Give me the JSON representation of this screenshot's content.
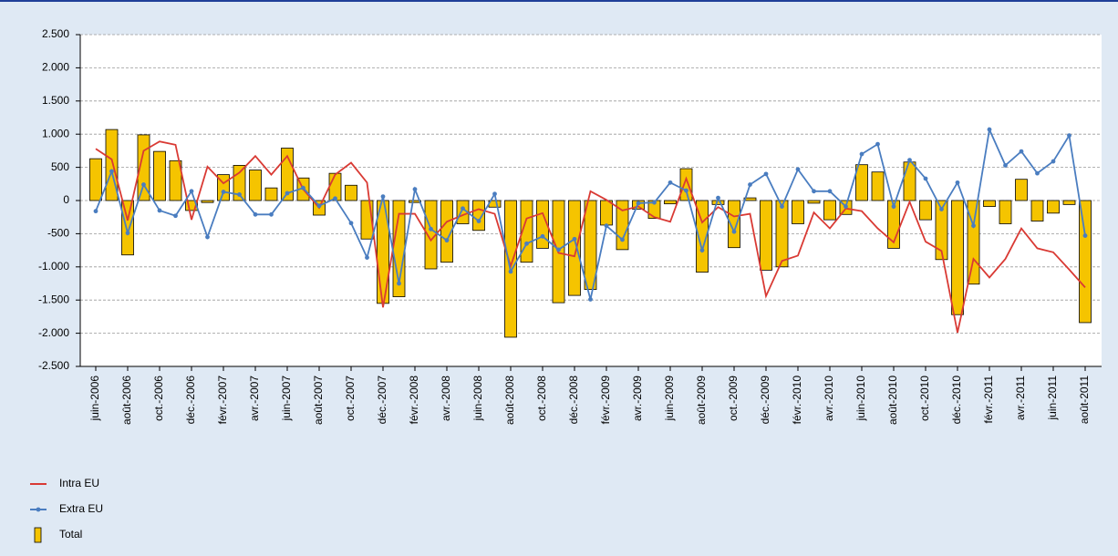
{
  "chart_data": {
    "type": "bar",
    "categories": [
      "juin-2006",
      null,
      "août-2006",
      null,
      "oct.-2006",
      null,
      "déc.-2006",
      null,
      "févr.-2007",
      null,
      "avr.-2007",
      null,
      "juin-2007",
      null,
      "août-2007",
      null,
      "oct.-2007",
      null,
      "déc.-2007",
      null,
      "févr.-2008",
      null,
      "avr.-2008",
      null,
      "juin-2008",
      null,
      "août-2008",
      null,
      "oct.-2008",
      null,
      "déc.-2008",
      null,
      "févr.-2009",
      null,
      "avr.-2009",
      null,
      "juin-2009",
      null,
      "août-2009",
      null,
      "oct.-2009",
      null,
      "déc.-2009",
      null,
      "févr.-2010",
      null,
      "avr.-2010",
      null,
      "juin-2010",
      null,
      "août-2010",
      null,
      "oct.-2010",
      null,
      "déc.-2010",
      null,
      "févr.-2011",
      null,
      "avr.-2011",
      null,
      "juin-2011",
      null,
      "août-2011"
    ],
    "series": [
      {
        "name": "Intra EU",
        "type": "line",
        "color": "#d93a34",
        "values": [
          780,
          620,
          -300,
          750,
          890,
          840,
          -290,
          510,
          260,
          420,
          670,
          390,
          670,
          170,
          -110,
          390,
          570,
          270,
          -1610,
          -200,
          -200,
          -600,
          -320,
          -220,
          -130,
          -200,
          -990,
          -270,
          -190,
          -790,
          -840,
          140,
          10,
          -150,
          -90,
          -250,
          -320,
          330,
          -330,
          -100,
          -240,
          -200,
          -1440,
          -910,
          -830,
          -180,
          -420,
          -120,
          -160,
          -420,
          -630,
          -20,
          -620,
          -760,
          -1990,
          -880,
          -1160,
          -880,
          -420,
          -720,
          -780,
          -1040,
          -1310
        ]
      },
      {
        "name": "Extra EU",
        "type": "line",
        "color": "#4a7dc0",
        "markers": true,
        "values": [
          -160,
          440,
          -490,
          240,
          -150,
          -230,
          140,
          -550,
          130,
          90,
          -210,
          -210,
          110,
          190,
          -80,
          30,
          -340,
          -860,
          60,
          -1250,
          170,
          -430,
          -600,
          -120,
          -310,
          100,
          -1070,
          -650,
          -540,
          -740,
          -580,
          -1490,
          -380,
          -590,
          -40,
          -30,
          270,
          150,
          -750,
          40,
          -470,
          240,
          400,
          -90,
          470,
          140,
          140,
          -90,
          700,
          850,
          -90,
          610,
          330,
          -130,
          270,
          -380,
          1070,
          530,
          740,
          410,
          590,
          980,
          -530
        ]
      },
      {
        "name": "Total",
        "type": "bar",
        "color": "#f5c400",
        "values": [
          630,
          1070,
          -820,
          990,
          740,
          600,
          -150,
          -30,
          390,
          530,
          460,
          190,
          790,
          340,
          -220,
          410,
          230,
          -580,
          -1550,
          -1450,
          -30,
          -1030,
          -930,
          -350,
          -450,
          -100,
          -2060,
          -930,
          -720,
          -1540,
          -1430,
          -1340,
          -370,
          -740,
          -130,
          -270,
          -50,
          480,
          -1080,
          -60,
          -710,
          40,
          -1050,
          -1000,
          -350,
          -40,
          -290,
          -210,
          540,
          430,
          -720,
          580,
          -290,
          -890,
          -1720,
          -1260,
          -90,
          -350,
          320,
          -310,
          -190,
          -60,
          -1840
        ]
      }
    ],
    "ylim": [
      -2500,
      2500
    ],
    "yticks": [
      {
        "value": -2500,
        "label": "-2.500"
      },
      {
        "value": -2000,
        "label": "-2.000"
      },
      {
        "value": -1500,
        "label": "-1.500"
      },
      {
        "value": -1000,
        "label": "-1.000"
      },
      -500,
      0,
      500,
      {
        "value": 1000,
        "label": "1.000"
      },
      {
        "value": 1500,
        "label": "1.500"
      },
      {
        "value": 2000,
        "label": "2.000"
      },
      {
        "value": 2500,
        "label": "2.500"
      }
    ],
    "grid": true,
    "legend": "bottom-left"
  }
}
